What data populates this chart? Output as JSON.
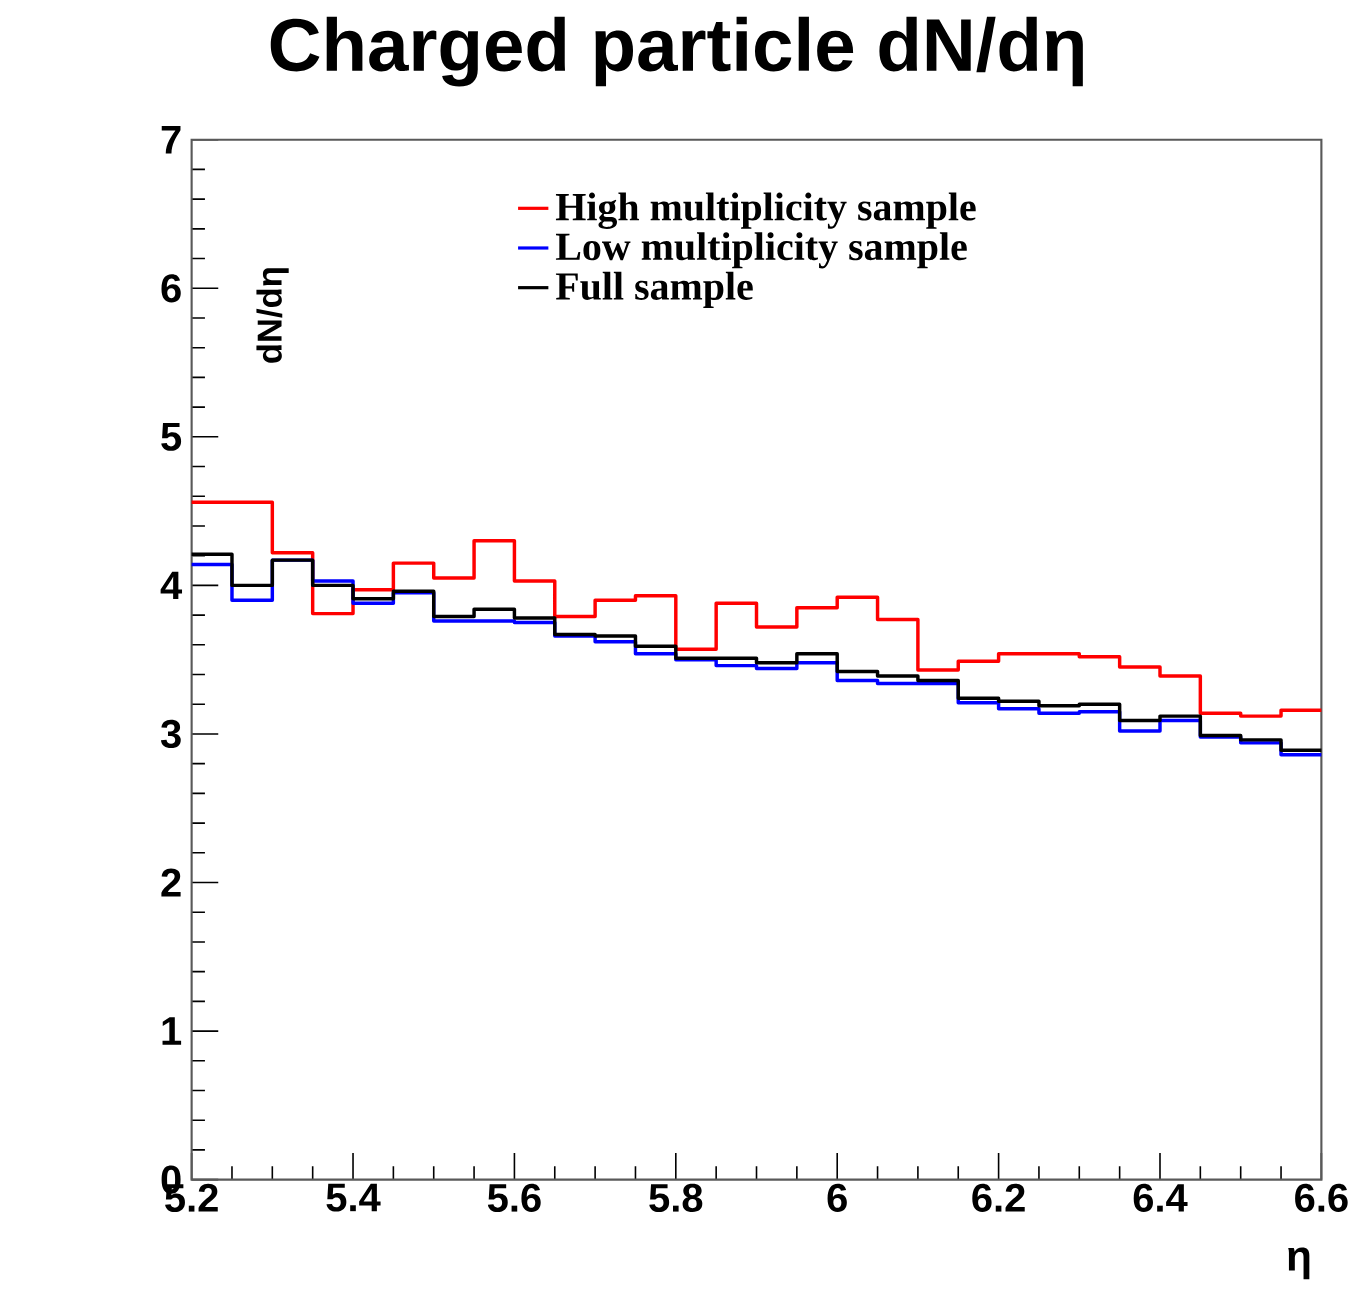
{
  "chart_data": {
    "type": "histogram",
    "title": "Charged particle dN/dη",
    "xlabel": "η",
    "ylabel": "dN/dη",
    "bins": [
      5.2,
      5.25,
      5.3,
      5.35,
      5.4,
      5.45,
      5.5,
      5.55,
      5.6,
      5.65,
      5.7,
      5.75,
      5.8,
      5.85,
      5.9,
      5.95,
      6.0,
      6.05,
      6.1,
      6.15,
      6.2,
      6.25,
      6.3,
      6.35,
      6.4,
      6.45,
      6.5,
      6.55,
      6.6
    ],
    "series": [
      {
        "name": "High multiplicity sample",
        "color": "#ff0000",
        "values": [
          4.56,
          4.56,
          4.22,
          3.81,
          3.97,
          4.15,
          4.05,
          4.3,
          4.03,
          3.79,
          3.9,
          3.93,
          3.57,
          3.88,
          3.72,
          3.85,
          3.92,
          3.77,
          3.43,
          3.49,
          3.54,
          3.54,
          3.52,
          3.45,
          3.39,
          3.14,
          3.12,
          3.16
        ]
      },
      {
        "name": "Low multiplicity sample",
        "color": "#0000ff",
        "values": [
          4.14,
          3.9,
          4.17,
          4.03,
          3.88,
          3.95,
          3.76,
          3.76,
          3.75,
          3.66,
          3.62,
          3.54,
          3.5,
          3.46,
          3.44,
          3.48,
          3.36,
          3.34,
          3.34,
          3.21,
          3.17,
          3.14,
          3.15,
          3.02,
          3.09,
          2.98,
          2.94,
          2.86
        ]
      },
      {
        "name": "Full sample",
        "color": "#000000",
        "values": [
          4.21,
          4.0,
          4.17,
          4.0,
          3.91,
          3.96,
          3.79,
          3.84,
          3.78,
          3.67,
          3.66,
          3.59,
          3.51,
          3.51,
          3.48,
          3.54,
          3.42,
          3.39,
          3.36,
          3.24,
          3.22,
          3.19,
          3.2,
          3.09,
          3.12,
          2.99,
          2.96,
          2.89
        ]
      }
    ],
    "xlim": [
      5.2,
      6.6
    ],
    "ylim": [
      0,
      7
    ],
    "xticks": [
      5.2,
      5.4,
      5.6,
      5.8,
      6,
      6.2,
      6.4,
      6.6
    ],
    "yticks": [
      0,
      1,
      2,
      3,
      4,
      5,
      6,
      7
    ],
    "legend": "top",
    "grid": false
  }
}
